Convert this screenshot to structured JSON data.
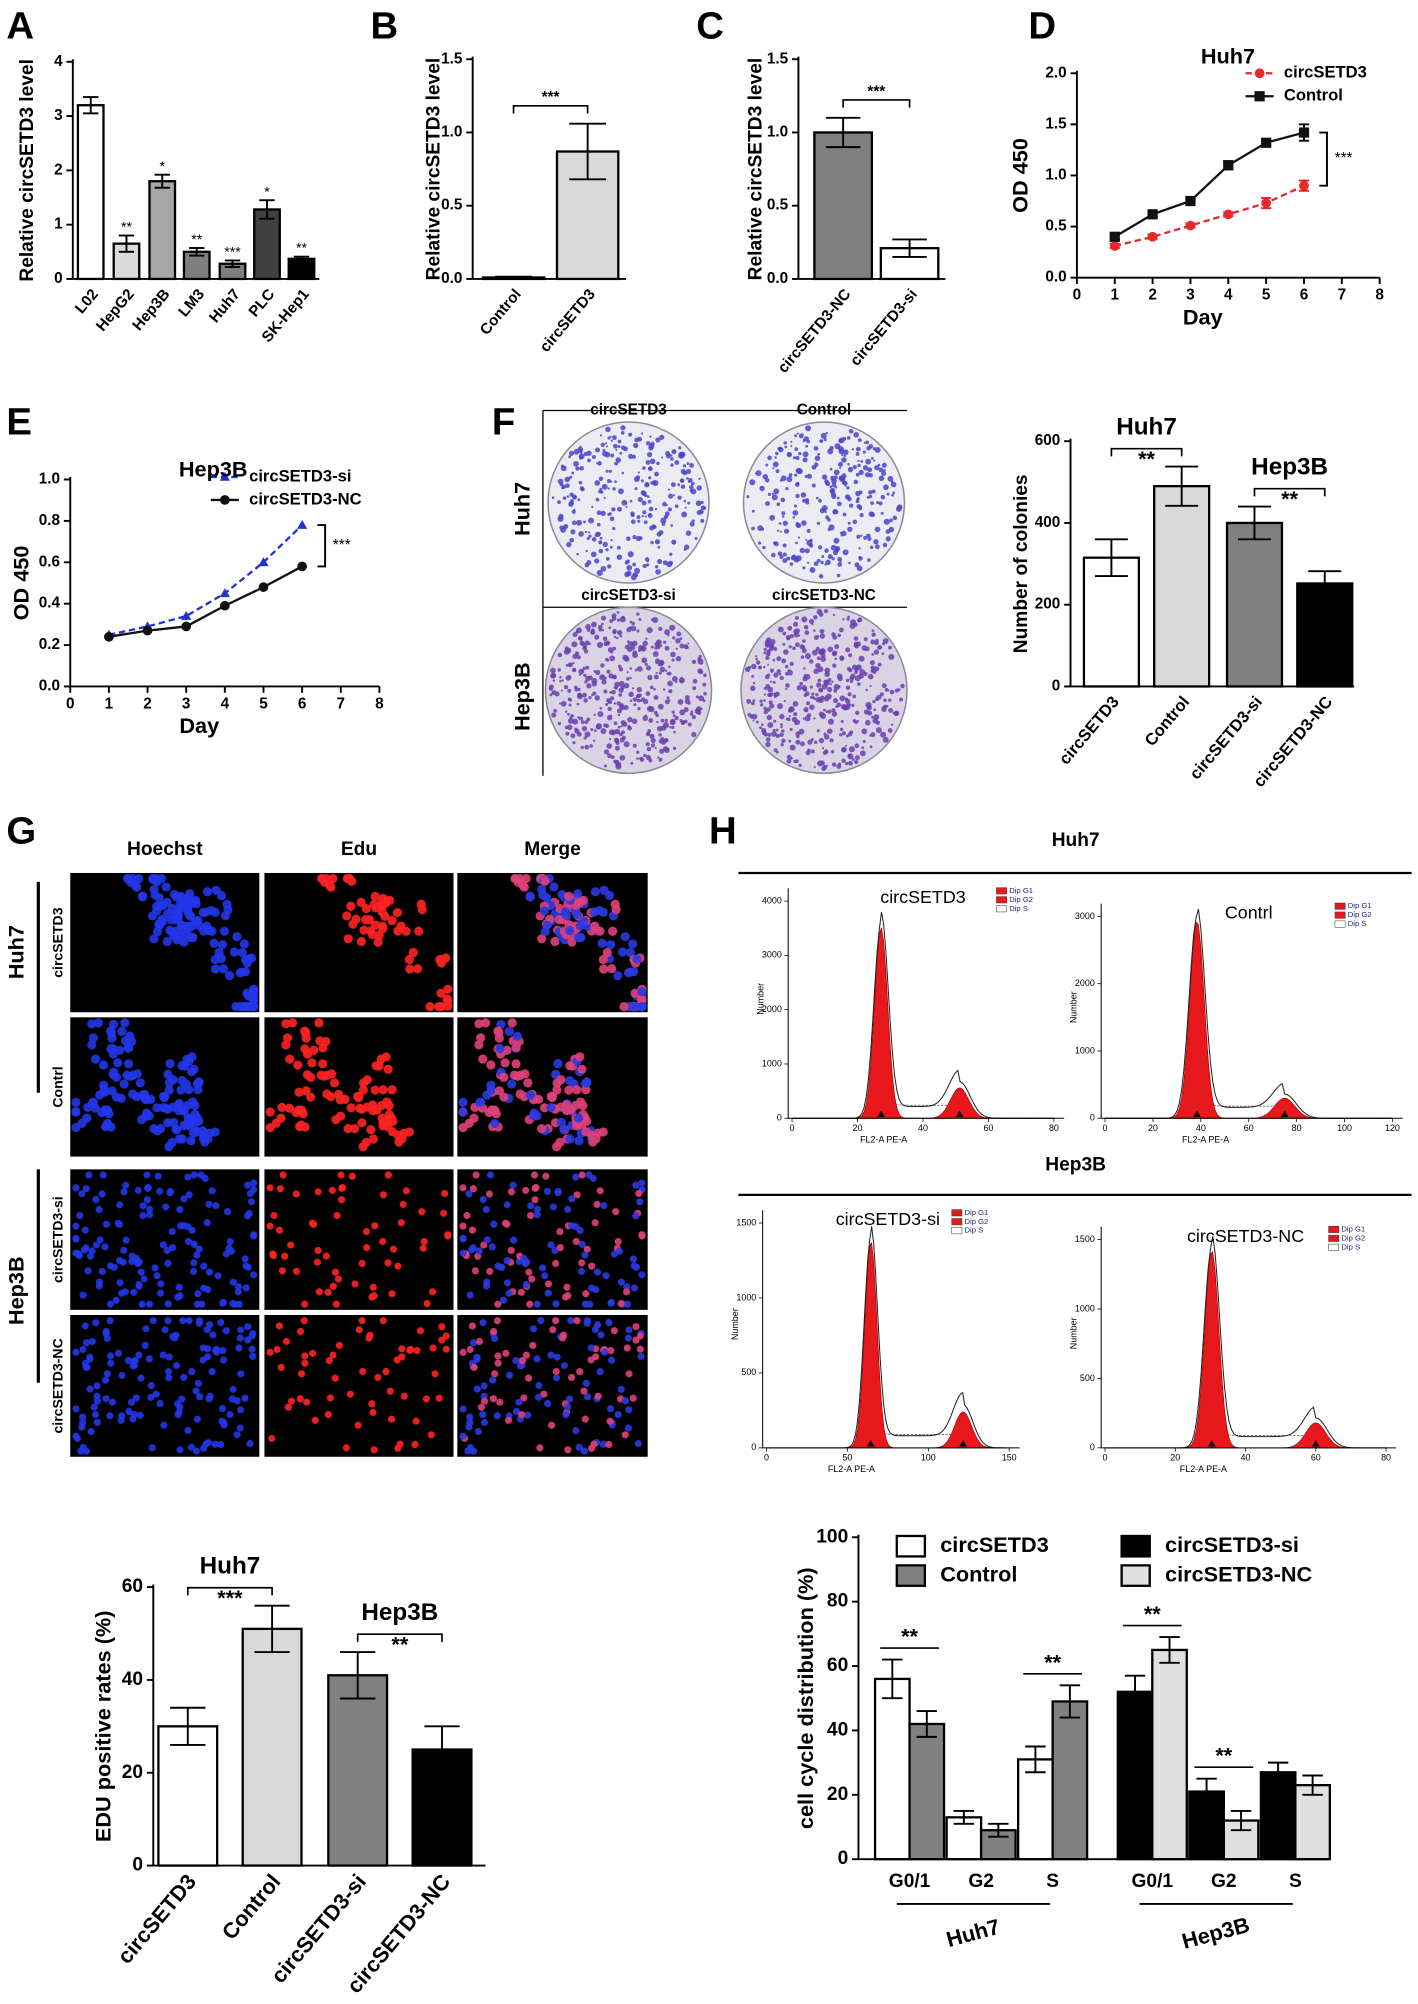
{
  "panel_labels": [
    "A",
    "B",
    "C",
    "D",
    "E",
    "F",
    "G",
    "H"
  ],
  "colony": {
    "columns": [
      [
        "circSETD3",
        "Control"
      ],
      [
        "circSETD3-si",
        "circSETD3-NC"
      ]
    ],
    "rows": [
      "Huh7",
      "Hep3B"
    ]
  },
  "edu_images": {
    "columns": [
      "Hoechst",
      "Edu",
      "Merge"
    ],
    "rows": [
      "circSETD3",
      "Contrl",
      "circSETD3-si",
      "circSETD3-NC"
    ],
    "groups": [
      "Huh7",
      "Hep3B"
    ]
  },
  "flow_groups": [
    "Huh7",
    "Hep3B"
  ],
  "chart_data": [
    {
      "type": "bar",
      "ylabel": "Relative circSETD3  level",
      "categories": [
        "L02",
        "HepG2",
        "Hep3B",
        "LM3",
        "Huh7",
        "PLC",
        "SK-Hep1"
      ],
      "values": [
        3.2,
        0.65,
        1.8,
        0.5,
        0.28,
        1.28,
        0.37
      ],
      "errors": [
        0.15,
        0.15,
        0.12,
        0.07,
        0.06,
        0.17,
        0.04
      ],
      "colors": [
        "#ffffff",
        "#d9d9d9",
        "#a6a6a6",
        "#7f7f7f",
        "#7f7f7f",
        "#404040",
        "#000000"
      ],
      "significance": [
        null,
        "**",
        "*",
        "**",
        "***",
        "*",
        "**"
      ],
      "ylim": [
        0,
        4
      ],
      "yticks": [
        0,
        1,
        2,
        3,
        4
      ]
    },
    {
      "type": "bar",
      "ylabel": "Relative circSETD3  level",
      "categories": [
        "Control",
        "circSETD3"
      ],
      "values": [
        0.01,
        0.87
      ],
      "errors": [
        0.005,
        0.19
      ],
      "colors": [
        "#ffffff",
        "#d9d9d9"
      ],
      "comparisons": [
        {
          "label": "***",
          "pair": [
            "Control",
            "circSETD3"
          ]
        }
      ],
      "ylim": [
        0,
        1.5
      ],
      "yticks": [
        {
          "value": 0,
          "label": "0.0"
        },
        0.5,
        {
          "value": 1,
          "label": "1.0"
        },
        1.5
      ]
    },
    {
      "type": "bar",
      "ylabel": "Relative circSETD3  level",
      "categories": [
        "circSETD3-NC",
        "circSETD3-si"
      ],
      "values": [
        1.0,
        0.21
      ],
      "errors": [
        0.1,
        0.06
      ],
      "colors": [
        "#808080",
        "#ffffff"
      ],
      "comparisons": [
        {
          "label": "***",
          "pair": [
            "circSETD3-NC",
            "circSETD3-si"
          ]
        }
      ],
      "ylim": [
        0,
        1.5
      ],
      "yticks": [
        {
          "value": 0,
          "label": "0.0"
        },
        0.5,
        {
          "value": 1,
          "label": "1.0"
        },
        1.5
      ]
    },
    {
      "type": "line",
      "title": "Huh7",
      "xlabel": "Day",
      "ylabel": "OD 450",
      "x": [
        1,
        2,
        3,
        4,
        5,
        6
      ],
      "xlim": [
        0,
        8
      ],
      "xticks": [
        0,
        1,
        2,
        3,
        4,
        5,
        6,
        7,
        8
      ],
      "ylim": [
        0,
        2
      ],
      "yticks": [
        {
          "value": 0,
          "label": "0.0"
        },
        0.5,
        {
          "value": 1,
          "label": "1.0"
        },
        1.5,
        {
          "value": 2,
          "label": "2.0"
        }
      ],
      "series": [
        {
          "name": "circSETD3",
          "color": "#e8282b",
          "dash": true,
          "marker": "circle",
          "values": [
            0.31,
            0.4,
            0.51,
            0.62,
            0.73,
            0.9
          ],
          "errors": [
            0.02,
            0.02,
            0.02,
            0.02,
            0.05,
            0.05
          ]
        },
        {
          "name": "Control",
          "color": "#111111",
          "dash": false,
          "marker": "square",
          "values": [
            0.4,
            0.62,
            0.75,
            1.1,
            1.32,
            1.42
          ],
          "errors": [
            0.03,
            0.02,
            0.02,
            0.04,
            0.02,
            0.08
          ]
        }
      ],
      "comparison": "***"
    },
    {
      "type": "line",
      "title": "Hep3B",
      "xlabel": "Day",
      "ylabel": "OD 450",
      "x": [
        1,
        2,
        3,
        4,
        5,
        6
      ],
      "xlim": [
        0,
        8
      ],
      "xticks": [
        0,
        1,
        2,
        3,
        4,
        5,
        6,
        7,
        8
      ],
      "ylim": [
        0,
        1
      ],
      "yticks": [
        {
          "value": 0,
          "label": "0.0"
        },
        0.2,
        0.4,
        0.6,
        0.8,
        {
          "value": 1,
          "label": "1.0"
        }
      ],
      "series": [
        {
          "name": "circSETD3-si",
          "color": "#2233cc",
          "dash": true,
          "marker": "triangle",
          "values": [
            0.25,
            0.29,
            0.34,
            0.45,
            0.6,
            0.78
          ]
        },
        {
          "name": "circSETD3-NC",
          "color": "#111111",
          "dash": false,
          "marker": "circle",
          "values": [
            0.24,
            0.27,
            0.29,
            0.39,
            0.48,
            0.58
          ]
        }
      ],
      "comparison": "***"
    },
    {
      "type": "bar",
      "ylabel": "Number of colonies",
      "categories": [
        "circSETD3",
        "Control",
        "circSETD3-si",
        "circSETD3-NC"
      ],
      "values": [
        315,
        490,
        400,
        252
      ],
      "errors": [
        45,
        48,
        40,
        30
      ],
      "colors": [
        "#ffffff",
        "#d9d9d9",
        "#808080",
        "#000000"
      ],
      "comparisons": [
        {
          "label": "**",
          "group": "Huh7",
          "pair": [
            "circSETD3",
            "Control"
          ]
        },
        {
          "label": "**",
          "group": "Hep3B",
          "pair": [
            "circSETD3-si",
            "circSETD3-NC"
          ]
        }
      ],
      "ylim": [
        0,
        600
      ],
      "yticks": [
        0,
        200,
        400,
        600
      ]
    },
    {
      "type": "bar",
      "ylabel": "EDU positive rates (%)",
      "categories": [
        "circSETD3",
        "Control",
        "circSETD3-si",
        "circSETD3-NC"
      ],
      "values": [
        30,
        51,
        41,
        25
      ],
      "errors": [
        4,
        5,
        5,
        5
      ],
      "colors": [
        "#ffffff",
        "#d9d9d9",
        "#808080",
        "#000000"
      ],
      "comparisons": [
        {
          "label": "***",
          "group": "Huh7",
          "pair": [
            "circSETD3",
            "Control"
          ]
        },
        {
          "label": "**",
          "group": "Hep3B",
          "pair": [
            "circSETD3-si",
            "circSETD3-NC"
          ]
        }
      ],
      "ylim": [
        0,
        60
      ],
      "yticks": [
        0,
        20,
        40,
        60
      ]
    },
    {
      "type": "flow",
      "title": "circSETD3",
      "legend": [
        "Dip G1",
        "Dip G2",
        "Dip S"
      ],
      "xlabel": "FL2-A PE-A",
      "ylabel": "Number",
      "xlim": [
        0,
        80
      ],
      "xticks": [
        0,
        20,
        40,
        60,
        80
      ],
      "ylim": [
        0,
        4000
      ],
      "yticks": [
        0,
        1000,
        2000,
        3000,
        4000
      ]
    },
    {
      "type": "flow",
      "title": "Contrl",
      "legend": [
        "Dip G1",
        "Dip G2",
        "Dip S"
      ],
      "xlabel": "FL2-A PE-A",
      "ylabel": "Number",
      "xlim": [
        0,
        120
      ],
      "xticks": [
        0,
        20,
        40,
        60,
        80,
        100,
        120
      ],
      "ylim": [
        0,
        3000
      ],
      "yticks": [
        0,
        1000,
        2000,
        3000
      ]
    },
    {
      "type": "flow",
      "title": "circSETD3-si",
      "legend": [
        "Dip G1",
        "Dip G2",
        "Dip S"
      ],
      "xlabel": "FL2-A PE-A",
      "ylabel": "Number",
      "xlim": [
        0,
        150
      ],
      "xticks": [
        0,
        50,
        100,
        150
      ],
      "ylim": [
        0,
        1500
      ],
      "yticks": [
        0,
        500,
        1000,
        1500
      ]
    },
    {
      "type": "flow",
      "title": "circSETD3-NC",
      "legend": [
        "Dip G1",
        "Dip G2",
        "Dip S"
      ],
      "xlabel": "FL2-A PE-A",
      "ylabel": "Number",
      "xlim": [
        0,
        80
      ],
      "xticks": [
        0,
        20,
        40,
        60,
        80
      ],
      "ylim": [
        0,
        1500
      ],
      "yticks": [
        0,
        500,
        1000,
        1500
      ]
    },
    {
      "type": "grouped_bar",
      "ylabel": "cell cycle distribution (%)",
      "categories": [
        "G0/1",
        "G2",
        "S",
        "G0/1",
        "G2",
        "S"
      ],
      "groups": [
        "Huh7",
        "Hep3B"
      ],
      "series": [
        {
          "name": "circSETD3",
          "color": "#ffffff",
          "values": [
            56,
            13,
            31,
            null,
            null,
            null
          ],
          "errors": [
            6,
            2,
            4,
            null,
            null,
            null
          ]
        },
        {
          "name": "Control",
          "color": "#808080",
          "values": [
            42,
            9,
            49,
            null,
            null,
            null
          ],
          "errors": [
            4,
            2,
            5,
            null,
            null,
            null
          ]
        },
        {
          "name": "circSETD3-si",
          "color": "#000000",
          "values": [
            null,
            null,
            null,
            52,
            21,
            27
          ],
          "errors": [
            null,
            null,
            null,
            5,
            4,
            3
          ]
        },
        {
          "name": "circSETD3-NC",
          "color": "#e0e0e0",
          "values": [
            null,
            null,
            null,
            65,
            12,
            23
          ],
          "errors": [
            null,
            null,
            null,
            4,
            3,
            3
          ]
        }
      ],
      "significance": [
        "**",
        null,
        "**",
        "**",
        "**",
        null
      ],
      "ylim": [
        0,
        100
      ],
      "yticks": [
        0,
        20,
        40,
        60,
        80,
        100
      ]
    }
  ]
}
